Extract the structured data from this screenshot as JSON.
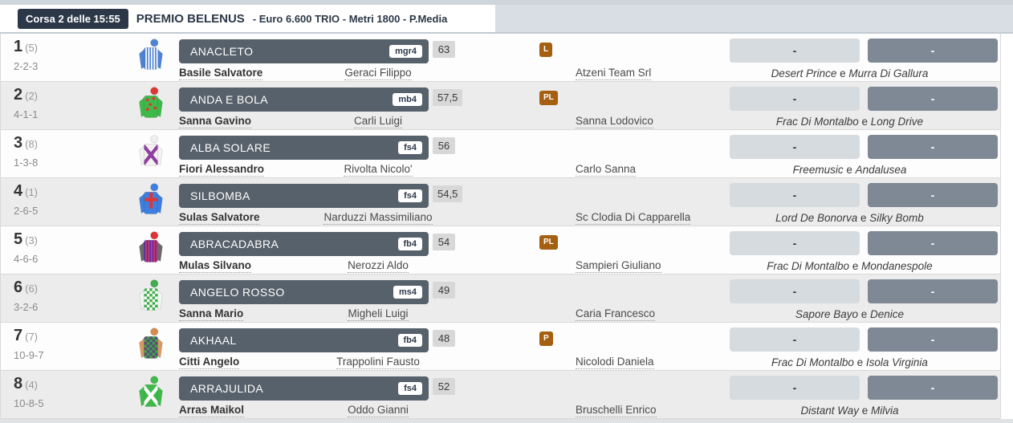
{
  "header": {
    "race_badge": "Corsa 2 delle 15:55",
    "title": "PREMIO BELENUS",
    "subtitle": "- Euro 6.600 TRIO - Metri 1800 - P.Media"
  },
  "colors": {
    "accent_dark": "#2c3848",
    "horse_box_bg": "#57616b",
    "flag_badge_bg": "#a55f11",
    "odds_box1_bg": "#d6dbdf",
    "odds_box2_bg": "#7e8995"
  },
  "conjunction": "e",
  "rows": [
    {
      "num": "1",
      "gate": "(5)",
      "form": "2-2-3",
      "horse": "ANACLETO",
      "code": "mgr4",
      "weight": "63",
      "flag": "L",
      "trainer": "Basile Salvatore",
      "jockey": "Geraci Filippo",
      "owner": "Atzeni Team Srl",
      "sire": "Desert Prince",
      "dam": "Murra Di Gallura",
      "odds1": "-",
      "odds2": "-",
      "silk": {
        "icon": "jockey-silks-icon",
        "pattern": "stripes",
        "body": "#4f83d6",
        "accent": "#ffffff",
        "sleeves": "#4f83d6",
        "cap": "#4f83d6"
      }
    },
    {
      "num": "2",
      "gate": "(2)",
      "form": "4-1-1",
      "horse": "ANDA E BOLA",
      "code": "mb4",
      "weight": "57,5",
      "flag": "PL",
      "trainer": "Sanna Gavino",
      "jockey": "Carli Luigi",
      "owner": "Sanna Lodovico",
      "sire": "Frac Di Montalbo",
      "dam": "Long Drive",
      "odds1": "-",
      "odds2": "-",
      "silk": {
        "icon": "jockey-silks-icon",
        "pattern": "dots",
        "body": "#3fba4a",
        "accent": "#e03535",
        "sleeves": "#3fba4a",
        "cap": "#e03535"
      }
    },
    {
      "num": "3",
      "gate": "(8)",
      "form": "1-3-8",
      "horse": "ALBA SOLARE",
      "code": "fs4",
      "weight": "56",
      "flag": "",
      "trainer": "Fiori Alessandro",
      "jockey": "Rivolta Nicolo'",
      "owner": "Carlo Sanna",
      "sire": "Freemusic",
      "dam": "Andalusea",
      "odds1": "-",
      "odds2": "-",
      "silk": {
        "icon": "jockey-silks-icon",
        "pattern": "sash-x",
        "body": "#f4f2f0",
        "accent": "#8e3fa0",
        "sleeves": "#f4f2f0",
        "cap": "#efefef"
      }
    },
    {
      "num": "4",
      "gate": "(1)",
      "form": "2-6-5",
      "horse": "SILBOMBA",
      "code": "fs4",
      "weight": "54,5",
      "flag": "",
      "trainer": "Sulas Salvatore",
      "jockey": "Narduzzi Massimiliano",
      "owner": "Sc Clodia Di Capparella",
      "sire": "Lord De Bonorva",
      "dam": "Silky Bomb",
      "odds1": "-",
      "odds2": "-",
      "silk": {
        "icon": "jockey-silks-icon",
        "pattern": "cross",
        "body": "#3d7fe0",
        "accent": "#e03535",
        "sleeves": "#3d7fe0",
        "cap": "#3d7fe0"
      }
    },
    {
      "num": "5",
      "gate": "(3)",
      "form": "4-6-6",
      "horse": "ABRACADABRA",
      "code": "fb4",
      "weight": "54",
      "flag": "PL",
      "trainer": "Mulas Silvano",
      "jockey": "Nerozzi Aldo",
      "owner": "Sampieri Giuliano",
      "sire": "Frac Di Montalbo",
      "dam": "Mondanespole",
      "odds1": "-",
      "odds2": "-",
      "silk": {
        "icon": "jockey-silks-icon",
        "pattern": "stripes",
        "body": "#5b2db0",
        "accent": "#cf3a63",
        "sleeves": "#6b6b6b",
        "cap": "#e03535"
      }
    },
    {
      "num": "6",
      "gate": "(6)",
      "form": "3-2-6",
      "horse": "ANGELO ROSSO",
      "code": "ms4",
      "weight": "49",
      "flag": "",
      "trainer": "Sanna Mario",
      "jockey": "Migheli Luigi",
      "owner": "Caria Francesco",
      "sire": "Sapore Bayo",
      "dam": "Denice",
      "odds1": "-",
      "odds2": "-",
      "silk": {
        "icon": "jockey-silks-icon",
        "pattern": "checks",
        "body": "#ffffff",
        "accent": "#3fae4a",
        "sleeves": "#eef7ee",
        "cap": "#3fae4a"
      }
    },
    {
      "num": "7",
      "gate": "(7)",
      "form": "10-9-7",
      "horse": "AKHAAL",
      "code": "fb4",
      "weight": "48",
      "flag": "P",
      "trainer": "Citti Angelo",
      "jockey": "Trappolini Fausto",
      "owner": "Nicolodi Daniela",
      "sire": "Frac Di Montalbo",
      "dam": "Isola Virginia",
      "odds1": "-",
      "odds2": "-",
      "silk": {
        "icon": "jockey-silks-icon",
        "pattern": "checks",
        "body": "#42a04e",
        "accent": "#5a4a7a",
        "sleeves": "#d79a62",
        "cap": "#d98a4f"
      }
    },
    {
      "num": "8",
      "gate": "(4)",
      "form": "10-8-5",
      "horse": "ARRAJULIDA",
      "code": "fs4",
      "weight": "52",
      "flag": "",
      "trainer": "Arras Maikol",
      "jockey": "Oddo Gianni",
      "owner": "Bruschelli Enrico",
      "sire": "Distant Way",
      "dam": "Milvia",
      "odds1": "-",
      "odds2": "-",
      "silk": {
        "icon": "jockey-silks-icon",
        "pattern": "sash-x",
        "body": "#3fba4a",
        "accent": "#ffffff",
        "sleeves": "#3fba4a",
        "cap": "#3fba4a"
      }
    }
  ]
}
